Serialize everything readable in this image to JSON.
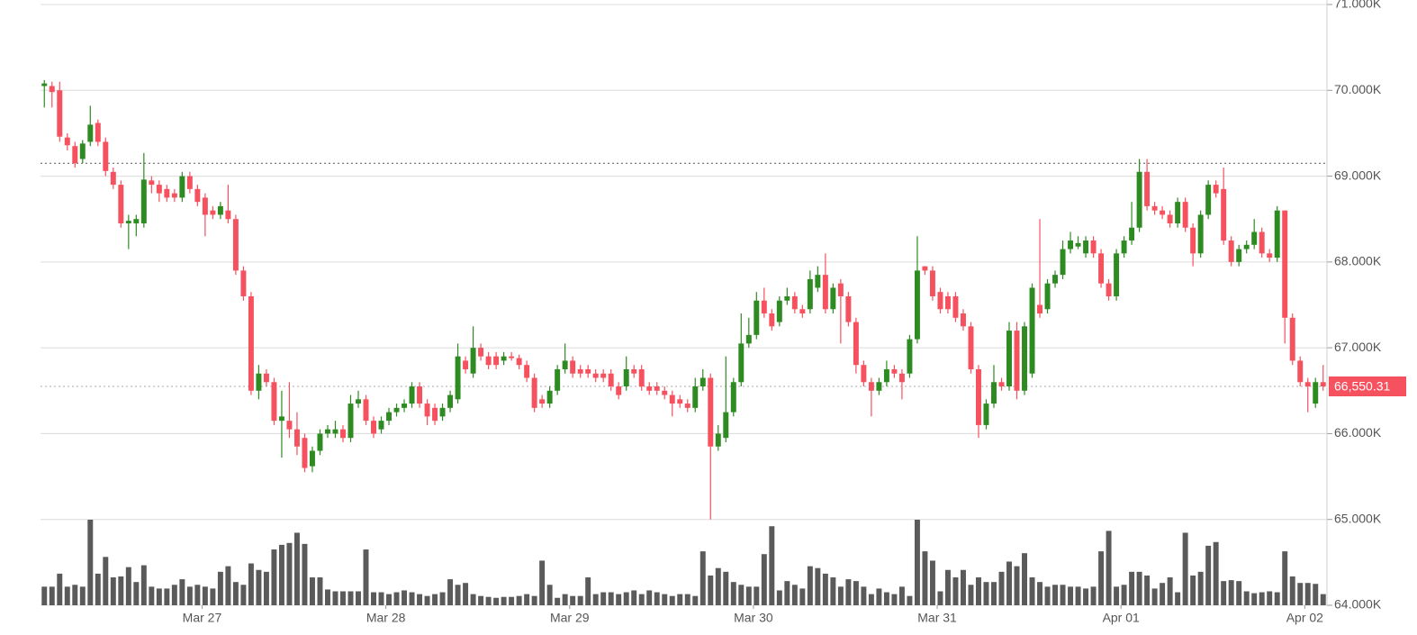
{
  "chart_data": {
    "type": "candlestick",
    "open": [
      70050,
      70050,
      70000,
      69450,
      69350,
      69200,
      69400,
      69620,
      69400,
      69050,
      68900,
      68450,
      68450,
      68450,
      68950,
      68900,
      68850,
      68800,
      68750,
      69000,
      68850,
      68750,
      68600,
      68550,
      68600,
      68500,
      67900,
      67600,
      66500,
      66700,
      66600,
      66150,
      66150,
      66050,
      65950,
      65620,
      65800,
      66000,
      66000,
      66050,
      65950,
      66350,
      66400,
      66150,
      66050,
      66150,
      66250,
      66300,
      66350,
      66550,
      66350,
      66300,
      66200,
      66300,
      66400,
      66850,
      66700,
      67000,
      66900,
      66900,
      66850,
      66900,
      66880,
      66800,
      66650,
      66400,
      66350,
      66500,
      66750,
      66850,
      66750,
      66750,
      66700,
      66700,
      66700,
      66550,
      66550,
      66750,
      66750,
      66550,
      66550,
      66500,
      66450,
      66400,
      66350,
      66300,
      66550,
      66650,
      65850,
      65950,
      66250,
      66600,
      67050,
      67150,
      67550,
      67400,
      67300,
      67550,
      67600,
      67450,
      67450,
      67700,
      67850,
      67450,
      67750,
      67600,
      67300,
      66800,
      66600,
      66500,
      66600,
      66750,
      66700,
      66700,
      67100,
      67950,
      67900,
      67650,
      67600,
      67600,
      67400,
      67250,
      66750,
      66100,
      66350,
      66600,
      66550,
      67200,
      66500,
      66700,
      67500,
      67450,
      67750,
      67850,
      68150,
      68180,
      68100,
      68250,
      68100,
      67750,
      67600,
      68100,
      68250,
      68400,
      69050,
      68650,
      68600,
      68550,
      68450,
      68700,
      68400,
      68100,
      68550,
      68900,
      68850,
      68250,
      68000,
      68150,
      68200,
      68350,
      68100,
      68050,
      68600,
      67350,
      66850,
      66600,
      66350,
      66600
    ],
    "high": [
      70120,
      70100,
      70100,
      69500,
      69400,
      69420,
      69820,
      69660,
      69450,
      69100,
      68950,
      68550,
      68550,
      69270,
      69000,
      68950,
      68900,
      68850,
      69050,
      69050,
      68900,
      68800,
      68650,
      68700,
      68900,
      68550,
      67950,
      67650,
      66800,
      66750,
      66650,
      66500,
      66600,
      66250,
      66000,
      65850,
      66050,
      66100,
      66150,
      66100,
      66450,
      66500,
      66450,
      66200,
      66200,
      66300,
      66350,
      66400,
      66600,
      66600,
      66400,
      66350,
      66350,
      66500,
      67050,
      66900,
      67250,
      67050,
      66950,
      66950,
      66950,
      66950,
      66920,
      66850,
      66700,
      66450,
      66550,
      66800,
      67050,
      66900,
      66800,
      66800,
      66750,
      66750,
      66750,
      66600,
      66900,
      66800,
      66800,
      66600,
      66600,
      66550,
      66500,
      66450,
      66400,
      66650,
      66750,
      66700,
      66100,
      66900,
      66650,
      67400,
      67350,
      67650,
      67700,
      67450,
      67600,
      67700,
      67650,
      67500,
      67900,
      67950,
      68100,
      67750,
      67800,
      67650,
      67350,
      66850,
      66650,
      66650,
      66850,
      66800,
      66750,
      67150,
      68300,
      67950,
      67950,
      67700,
      67650,
      67650,
      67450,
      67300,
      66800,
      66400,
      66800,
      66650,
      67300,
      67300,
      67300,
      67750,
      68500,
      67800,
      67900,
      68250,
      68350,
      68300,
      68300,
      68300,
      68150,
      67800,
      68150,
      68300,
      68700,
      69200,
      69200,
      68700,
      68650,
      68600,
      68750,
      68750,
      68450,
      68600,
      68950,
      68950,
      69100,
      68300,
      68200,
      68250,
      68500,
      68400,
      68150,
      68650,
      68600,
      67400,
      66900,
      66650,
      66650,
      66800
    ],
    "low": [
      69800,
      69800,
      69400,
      69300,
      69100,
      69150,
      69350,
      69350,
      69000,
      68850,
      68400,
      68150,
      68300,
      68400,
      68800,
      68700,
      68700,
      68700,
      68700,
      68800,
      68650,
      68300,
      68500,
      68500,
      68450,
      67850,
      67550,
      66450,
      66400,
      66550,
      66100,
      65720,
      65950,
      65750,
      65550,
      65550,
      65750,
      65950,
      65950,
      65900,
      65900,
      66300,
      66100,
      65950,
      66000,
      66100,
      66200,
      66250,
      66300,
      66300,
      66100,
      66100,
      66150,
      66250,
      66350,
      66700,
      66650,
      66850,
      66750,
      66750,
      66800,
      66850,
      66750,
      66600,
      66250,
      66300,
      66300,
      66450,
      66700,
      66650,
      66650,
      66650,
      66600,
      66600,
      66500,
      66400,
      66500,
      66650,
      66500,
      66450,
      66450,
      66400,
      66200,
      66300,
      66250,
      66250,
      66500,
      65000,
      65800,
      65900,
      66200,
      66550,
      67000,
      67100,
      67350,
      67200,
      67250,
      67500,
      67400,
      67350,
      67400,
      67650,
      67400,
      67400,
      67050,
      67250,
      66700,
      66550,
      66200,
      66450,
      66550,
      66650,
      66400,
      66650,
      67050,
      67850,
      67550,
      67400,
      67400,
      67300,
      67200,
      66700,
      65950,
      66050,
      66300,
      66500,
      66500,
      66400,
      66450,
      66650,
      67350,
      67400,
      67700,
      67800,
      68100,
      68150,
      68050,
      68050,
      67700,
      67550,
      67550,
      68050,
      68200,
      68350,
      68600,
      68550,
      68500,
      68400,
      68400,
      68350,
      67950,
      68050,
      68500,
      68750,
      68200,
      67950,
      67950,
      68100,
      68150,
      68050,
      68000,
      68000,
      67050,
      66800,
      66550,
      66250,
      66300,
      66500
    ],
    "close": [
      70080,
      69980,
      69460,
      69360,
      69150,
      69380,
      69600,
      69400,
      69060,
      68900,
      68450,
      68480,
      68500,
      68960,
      68900,
      68800,
      68750,
      68750,
      69000,
      68850,
      68700,
      68550,
      68550,
      68650,
      68500,
      67900,
      67600,
      66500,
      66700,
      66600,
      66150,
      66200,
      66050,
      65850,
      65600,
      65800,
      66000,
      66050,
      66050,
      65950,
      66350,
      66400,
      66150,
      66000,
      66150,
      66250,
      66300,
      66350,
      66550,
      66350,
      66200,
      66150,
      66300,
      66450,
      66900,
      66750,
      67000,
      66900,
      66800,
      66800,
      66900,
      66880,
      66800,
      66650,
      66300,
      66350,
      66500,
      66750,
      66850,
      66700,
      66700,
      66700,
      66650,
      66650,
      66550,
      66450,
      66750,
      66700,
      66550,
      66500,
      66500,
      66450,
      66350,
      66350,
      66300,
      66550,
      66650,
      65850,
      66000,
      66250,
      66600,
      67050,
      67150,
      67550,
      67400,
      67250,
      67550,
      67600,
      67450,
      67400,
      67800,
      67850,
      67450,
      67700,
      67600,
      67300,
      66800,
      66600,
      66500,
      66600,
      66750,
      66700,
      66600,
      67100,
      67900,
      67900,
      67600,
      67450,
      67450,
      67350,
      67250,
      66750,
      66100,
      66350,
      66600,
      66550,
      67200,
      66500,
      67250,
      67700,
      67400,
      67750,
      67850,
      68150,
      68250,
      68220,
      68250,
      68100,
      67750,
      67600,
      68100,
      68250,
      68400,
      69050,
      68650,
      68600,
      68550,
      68450,
      68700,
      68400,
      68100,
      68550,
      68900,
      68800,
      68250,
      68000,
      68150,
      68200,
      68350,
      68100,
      68050,
      68600,
      67350,
      66850,
      66600,
      66550,
      66600,
      66550.31
    ],
    "volume": [
      20,
      20,
      34,
      20,
      22,
      20,
      92,
      34,
      52,
      30,
      31,
      41,
      25,
      43,
      20,
      18,
      18,
      22,
      28,
      20,
      22,
      20,
      18,
      36,
      42,
      25,
      22,
      45,
      38,
      36,
      60,
      65,
      67,
      78,
      66,
      30,
      30,
      17,
      15,
      15,
      15,
      15,
      60,
      14,
      14,
      12,
      14,
      16,
      14,
      12,
      10,
      12,
      14,
      28,
      22,
      24,
      12,
      10,
      9,
      8,
      9,
      9,
      10,
      12,
      10,
      48,
      22,
      8,
      12,
      10,
      10,
      30,
      12,
      14,
      14,
      12,
      14,
      16,
      12,
      16,
      14,
      12,
      10,
      12,
      12,
      10,
      58,
      32,
      40,
      36,
      25,
      22,
      20,
      20,
      55,
      85,
      16,
      26,
      22,
      18,
      42,
      40,
      34,
      30,
      20,
      28,
      26,
      20,
      12,
      18,
      14,
      12,
      20,
      10,
      92,
      58,
      48,
      15,
      38,
      30,
      38,
      22,
      30,
      25,
      25,
      36,
      47,
      42,
      56,
      30,
      25,
      20,
      22,
      22,
      20,
      20,
      18,
      20,
      58,
      80,
      20,
      22,
      36,
      36,
      32,
      18,
      24,
      30,
      14,
      78,
      32,
      36,
      64,
      68,
      26,
      27,
      26,
      15,
      13,
      14,
      15,
      14,
      58,
      31,
      24,
      24,
      23,
      12
    ],
    "up_color": "#2e8b22",
    "down_color": "#f5515f",
    "volume_color": "#5a5a5a",
    "xlim": [
      -0.5,
      167.5
    ],
    "xticks": [
      {
        "value": 20.6,
        "label": "Mar 27"
      },
      {
        "value": 44.6,
        "label": "Mar 28"
      },
      {
        "value": 68.6,
        "label": "Mar 29"
      },
      {
        "value": 92.6,
        "label": "Mar 30"
      },
      {
        "value": 116.6,
        "label": "Mar 31"
      },
      {
        "value": 140.6,
        "label": "Apr 01"
      },
      {
        "value": 164.6,
        "label": "Apr 02"
      }
    ],
    "ylim": [
      64000,
      71000
    ],
    "yticks": [
      {
        "value": 64000,
        "label": "64.000K"
      },
      {
        "value": 65000,
        "label": "65.000K"
      },
      {
        "value": 66000,
        "label": "66.000K"
      },
      {
        "value": 67000,
        "label": "67.000K"
      },
      {
        "value": 68000,
        "label": "68.000K"
      },
      {
        "value": 69000,
        "label": "69.000K"
      },
      {
        "value": 70000,
        "label": "70.000K"
      },
      {
        "value": 71000,
        "label": "71.000K"
      }
    ],
    "grid": true,
    "last_price": {
      "value": 66550.31,
      "label": "66,550.31"
    },
    "high_line": 69150
  }
}
